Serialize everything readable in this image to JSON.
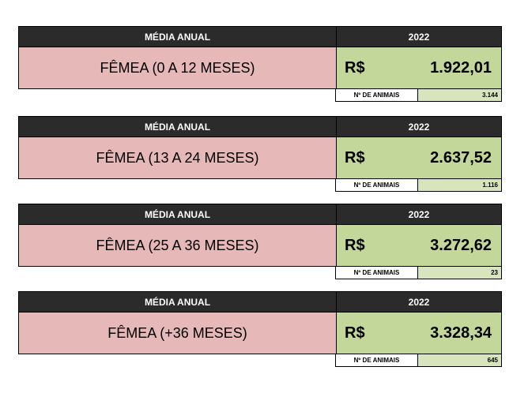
{
  "blocks": [
    {
      "header_left": "MÉDIA ANUAL",
      "header_right": "2022",
      "category": "FÊMEA (0 A 12 MESES)",
      "currency": "R$",
      "value": "1.922,01",
      "count_label": "Nº DE ANIMAIS",
      "count_value": "3.144"
    },
    {
      "header_left": "MÉDIA ANUAL",
      "header_right": "2022",
      "category": "FÊMEA (13 A 24 MESES)",
      "currency": "R$",
      "value": "2.637,52",
      "count_label": "Nº DE ANIMAIS",
      "count_value": "1.116"
    },
    {
      "header_left": "MÉDIA ANUAL",
      "header_right": "2022",
      "category": "FÊMEA (25 A 36 MESES)",
      "currency": "R$",
      "value": "3.272,62",
      "count_label": "Nº DE ANIMAIS",
      "count_value": "23"
    },
    {
      "header_left": "MÉDIA ANUAL",
      "header_right": "2022",
      "category": "FÊMEA (+36 MESES)",
      "currency": "R$",
      "value": "3.328,34",
      "count_label": "Nº DE ANIMAIS",
      "count_value": "645"
    }
  ],
  "colors": {
    "header_bg": "#2b2b2b",
    "category_bg": "#e6b8b7",
    "value_bg": "#c4d79b",
    "count_bg": "#d8e4bc"
  }
}
